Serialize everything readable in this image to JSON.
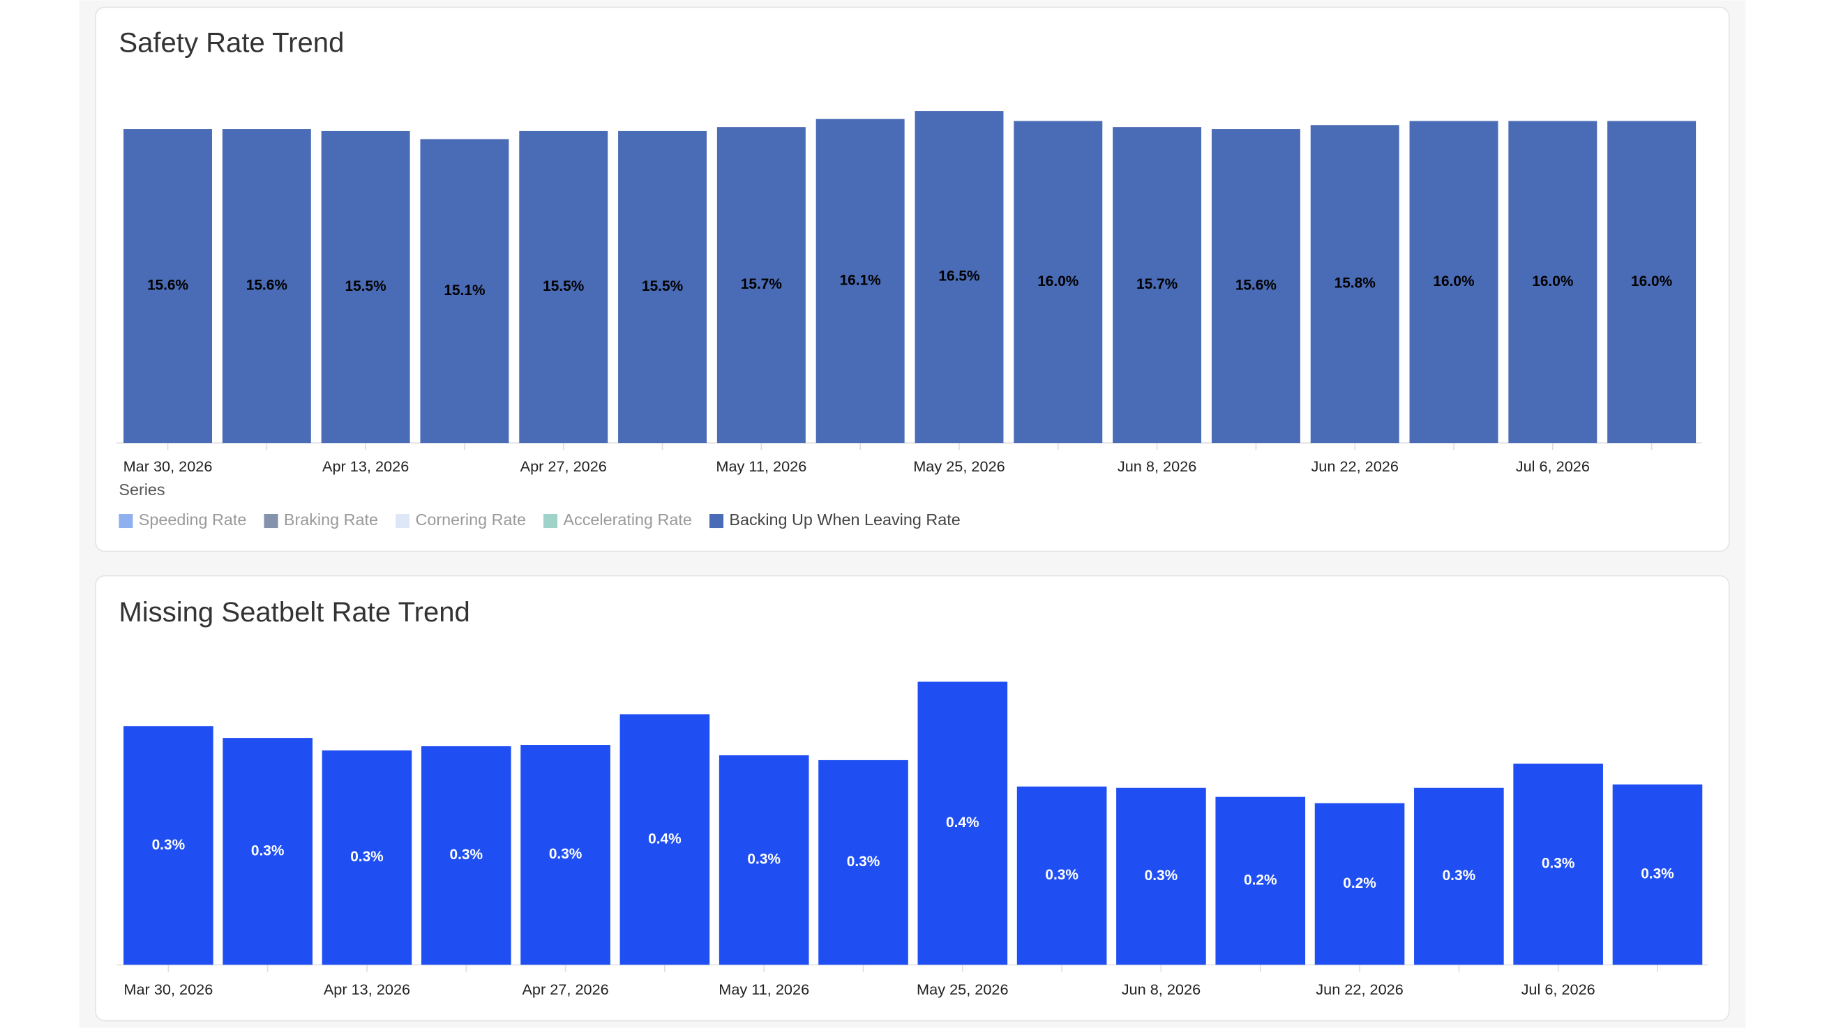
{
  "charts": [
    {
      "title": "Safety Rate Trend",
      "chart_data": {
        "type": "bar",
        "categories": [
          "Mar 30, 2026",
          null,
          "Apr 13, 2026",
          null,
          "Apr 27, 2026",
          null,
          "May 11, 2026",
          null,
          "May 25, 2026",
          null,
          "Jun 8, 2026",
          null,
          "Jun 22, 2026",
          null,
          "Jul 6, 2026",
          null
        ],
        "legend_title": "Series",
        "series": [
          {
            "name": "Speeding Rate",
            "color": "#8fb0ee",
            "hidden": true
          },
          {
            "name": "Braking Rate",
            "color": "#8592ac",
            "hidden": true
          },
          {
            "name": "Cornering Rate",
            "color": "#dde7f8",
            "hidden": true
          },
          {
            "name": "Accelerating Rate",
            "color": "#9fd3c9",
            "hidden": true
          },
          {
            "name": "Backing Up When Leaving Rate",
            "color": "#4a6bb5",
            "label_color": "#000000",
            "values": [
              15.6,
              15.6,
              15.5,
              15.1,
              15.5,
              15.5,
              15.7,
              16.1,
              16.5,
              16.0,
              15.7,
              15.6,
              15.8,
              16.0,
              16.0,
              16.0
            ],
            "value_labels": [
              "15.6%",
              "15.6%",
              "15.5%",
              "15.1%",
              "15.5%",
              "15.5%",
              "15.7%",
              "16.1%",
              "16.5%",
              "16.0%",
              "15.7%",
              "15.6%",
              "15.8%",
              "16.0%",
              "16.0%",
              "16.0%"
            ]
          }
        ]
      }
    },
    {
      "title": "Missing Seatbelt Rate Trend",
      "chart_data": {
        "type": "bar",
        "categories": [
          "Mar 30, 2026",
          null,
          "Apr 13, 2026",
          null,
          "Apr 27, 2026",
          null,
          "May 11, 2026",
          null,
          "May 25, 2026",
          null,
          "Jun 8, 2026",
          null,
          "Jun 22, 2026",
          null,
          "Jul 6, 2026",
          null
        ],
        "series": [
          {
            "color": "#1f4ff2",
            "label_color": "#ffffff",
            "values": [
              0.344,
              0.327,
              0.309,
              0.315,
              0.317,
              0.361,
              0.302,
              0.295,
              0.408,
              0.257,
              0.255,
              0.242,
              0.233,
              0.255,
              0.29,
              0.26
            ],
            "value_labels": [
              "0.3%",
              "0.3%",
              "0.3%",
              "0.3%",
              "0.3%",
              "0.4%",
              "0.3%",
              "0.3%",
              "0.4%",
              "0.3%",
              "0.3%",
              "0.2%",
              "0.2%",
              "0.3%",
              "0.3%",
              "0.3%"
            ]
          }
        ]
      }
    }
  ]
}
